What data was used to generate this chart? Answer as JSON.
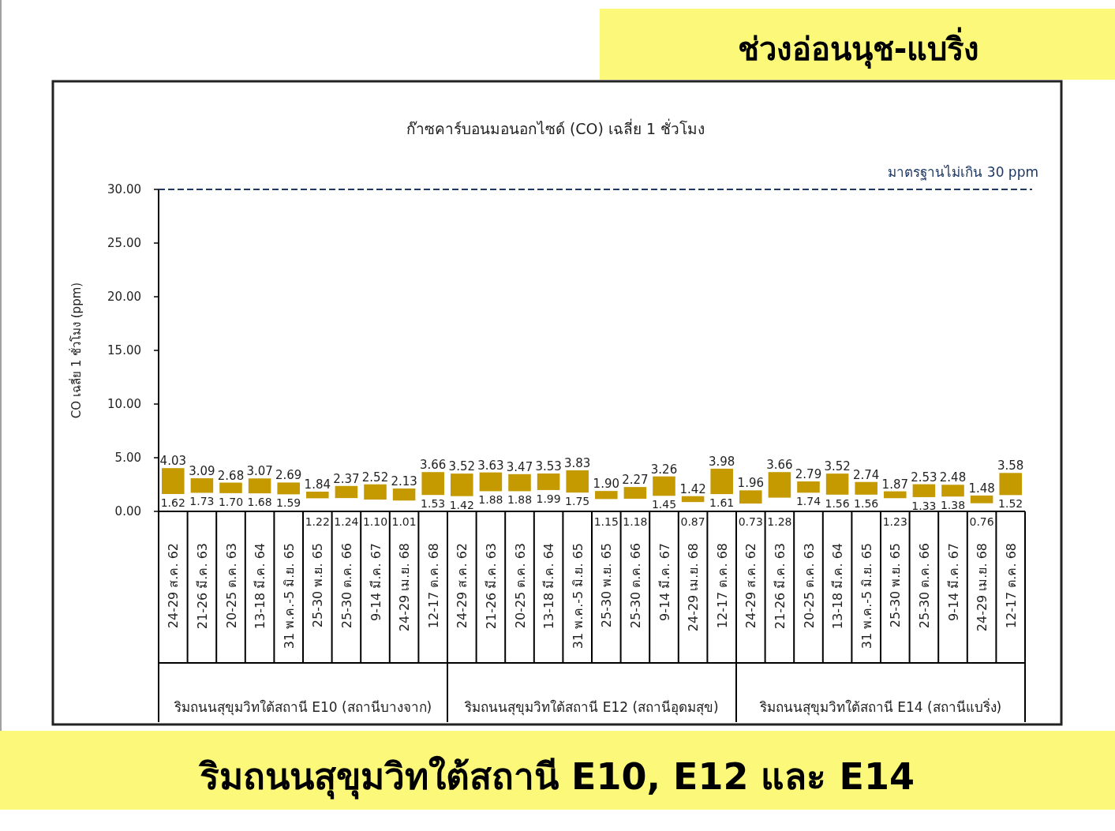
{
  "chart_data": {
    "type": "bar",
    "title": "ก๊าซคาร์บอนมอนอกไซด์ (CO) เฉลี่ย 1 ชั่วโมง",
    "subtitle": "ช่วงอ่อนนุช-แบริ่ง",
    "ylabel": "CO เฉลี่ย 1 ชั่วโมง (ppm)",
    "categories": [
      "24-29 ส.ค. 62",
      "21-26 มี.ค. 63",
      "20-25 ต.ค. 63",
      "13-18 มี.ค. 64",
      "31 พ.ค.-5 มิ.ย. 65",
      "25-30 พ.ย. 65",
      "25-30 ต.ค. 66",
      "9-14 มี.ค. 67",
      "24-29 เม.ย. 68",
      "12-17 ต.ค. 68",
      "24-29 ส.ค. 62",
      "21-26 มี.ค. 63",
      "20-25 ต.ค. 63",
      "13-18 มี.ค. 64",
      "31 พ.ค.-5 มิ.ย. 65",
      "25-30 พ.ย. 65",
      "25-30 ต.ค. 66",
      "9-14 มี.ค. 67",
      "24-29 เม.ย. 68",
      "12-17 ต.ค. 68",
      "24-29 ส.ค. 62",
      "21-26 มี.ค. 63",
      "20-25 ต.ค. 63",
      "13-18 มี.ค. 64",
      "31 พ.ค.-5 มิ.ย. 65",
      "25-30 พ.ย. 65",
      "25-30 ต.ค. 66",
      "9-14 มี.ค. 67",
      "24-29 เม.ย. 68",
      "12-17 ต.ค. 68"
    ],
    "base": [
      1.62,
      1.73,
      1.7,
      1.68,
      1.59,
      1.22,
      1.24,
      1.1,
      1.01,
      1.53,
      1.42,
      1.88,
      1.88,
      1.99,
      1.75,
      1.15,
      1.18,
      1.45,
      0.87,
      1.61,
      0.73,
      1.28,
      1.74,
      1.56,
      1.56,
      1.23,
      1.33,
      1.38,
      0.76,
      1.52
    ],
    "values": [
      2.41,
      1.36,
      0.98,
      1.39,
      1.1,
      0.62,
      1.13,
      1.42,
      1.12,
      2.13,
      2.1,
      1.75,
      1.59,
      1.54,
      2.08,
      0.75,
      1.09,
      1.81,
      0.55,
      2.37,
      1.23,
      2.38,
      1.05,
      1.96,
      1.18,
      0.64,
      1.2,
      1.1,
      0.72,
      2.06
    ],
    "value_labels": [
      "4.03",
      "3.09",
      "2.68",
      "3.07",
      "2.69",
      "1.84",
      "2.37",
      "2.52",
      "2.13",
      "3.66",
      "3.52",
      "3.63",
      "3.47",
      "3.53",
      "3.83",
      "1.90",
      "2.27",
      "3.26",
      "1.42",
      "3.98",
      "1.96",
      "3.66",
      "2.79",
      "3.52",
      "2.74",
      "1.87",
      "2.53",
      "2.48",
      "1.48",
      "3.58"
    ],
    "color": "#c49a00",
    "ylim": [
      0,
      30
    ],
    "yticks": [
      {
        "value": 0,
        "label": "0.00"
      },
      {
        "value": 5,
        "label": "5.00"
      },
      {
        "value": 10,
        "label": "10.00"
      },
      {
        "value": 15,
        "label": "15.00"
      },
      {
        "value": 20,
        "label": "20.00"
      },
      {
        "value": 25,
        "label": "25.00"
      },
      {
        "value": 30,
        "label": "30.00"
      }
    ],
    "ref_lines": [
      {
        "axis": "y",
        "value": 30,
        "label": "มาตรฐานไม่เกิน 30 ppm",
        "color": "#1f3864",
        "line_style": "dashed"
      }
    ],
    "annotations": [
      {
        "text": "1.62",
        "y": 1.62
      },
      {
        "text": "1.73",
        "y": 1.73
      },
      {
        "text": "1.70",
        "y": 1.7
      },
      {
        "text": "1.68",
        "y": 1.68
      },
      {
        "text": "1.59",
        "y": 1.59
      },
      {
        "text": "1.22",
        "y": 1.22
      },
      {
        "text": "1.24",
        "y": 1.24
      },
      {
        "text": "1.10",
        "y": 1.1
      },
      {
        "text": "1.01",
        "y": 1.01
      },
      {
        "text": "1.53",
        "y": 1.53
      },
      {
        "text": "1.42",
        "y": 1.42
      },
      {
        "text": "1.88",
        "y": 1.88
      },
      {
        "text": "1.88",
        "y": 1.88
      },
      {
        "text": "1.99",
        "y": 1.99
      },
      {
        "text": "1.75",
        "y": 1.75
      },
      {
        "text": "1.15",
        "y": 1.15
      },
      {
        "text": "1.18",
        "y": 1.18
      },
      {
        "text": "1.45",
        "y": 1.45
      },
      {
        "text": "0.87",
        "y": 0.87
      },
      {
        "text": "1.61",
        "y": 1.61
      },
      {
        "text": "0.73",
        "y": 0.73
      },
      {
        "text": "1.28",
        "y": 1.28
      },
      {
        "text": "1.74",
        "y": 1.74
      },
      {
        "text": "1.56",
        "y": 1.56
      },
      {
        "text": "1.56",
        "y": 1.56
      },
      {
        "text": "1.23",
        "y": 1.23
      },
      {
        "text": "1.33",
        "y": 1.33
      },
      {
        "text": "1.38",
        "y": 1.38
      },
      {
        "text": "0.76",
        "y": 0.76
      },
      {
        "text": "1.52",
        "y": 1.52
      },
      "ริมถนนสุขุมวิทใต้สถานี E10 (สถานีบางจาก)",
      "ริมถนนสุขุมวิทใต้สถานี E12 (สถานีอุดมสุข)",
      "ริมถนนสุขุมวิทใต้สถานี E14 (สถานีแบริ่ง)",
      "ริมถนนสุขุมวิทใต้สถานี E10, E12 และ E14"
    ]
  }
}
